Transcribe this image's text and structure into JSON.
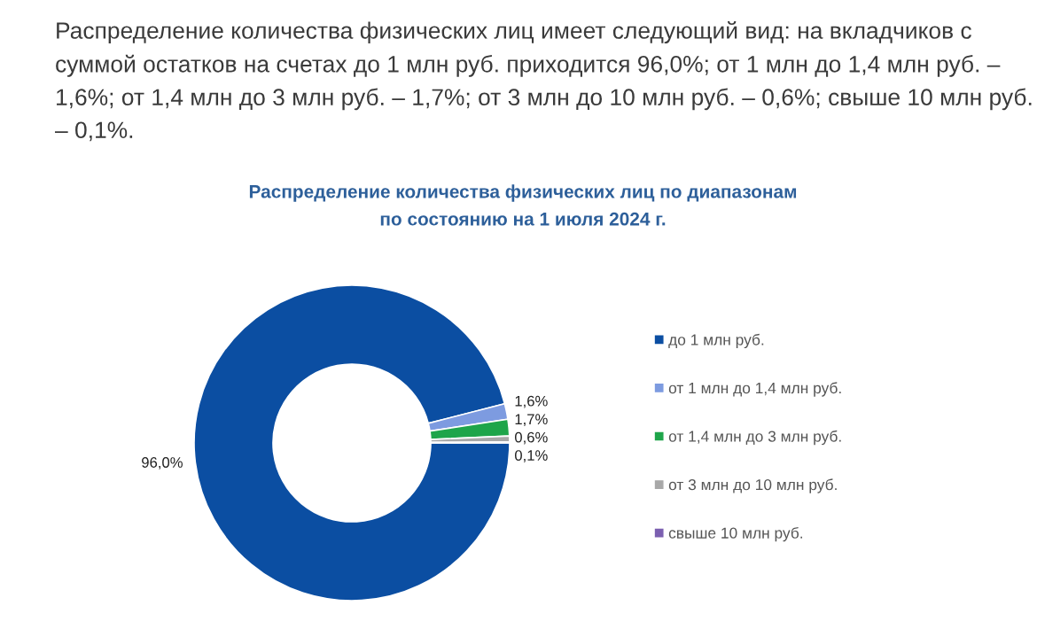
{
  "chart_data": {
    "type": "donut",
    "title": "Распределение количества физических лиц по диапазонам",
    "subtitle": "по состоянию на 1 июля 2024 г.",
    "annotations": [
      "Распределение количества физических лиц имеет следующий вид: на вкладчиков с суммой остатков на счетах до 1 млн руб. приходится 96,0%; от 1 млн до 1,4 млн руб. – 1,6%; от 1,4 млн до 3 млн руб. – 1,7%; от 3 млн до 10 млн руб. – 0,6%; свыше 10 млн руб. – 0,1%."
    ],
    "categories": [
      "до 1 млн руб.",
      "от 1 млн до 1,4 млн руб.",
      "от 1,4 млн до 3 млн руб.",
      "от 3 млн до 10 млн руб.",
      "свыше 10 млн руб."
    ],
    "values": [
      96.0,
      1.6,
      1.7,
      0.6,
      0.1
    ],
    "colors": [
      "#0b4ea2",
      "#7d9be0",
      "#1ea54a",
      "#a8a8a8",
      "#7b5fb0"
    ],
    "value_labels": [
      "96,0%",
      "1,6%",
      "1,7%",
      "0,6%",
      "0,1%"
    ],
    "legend": "right"
  }
}
